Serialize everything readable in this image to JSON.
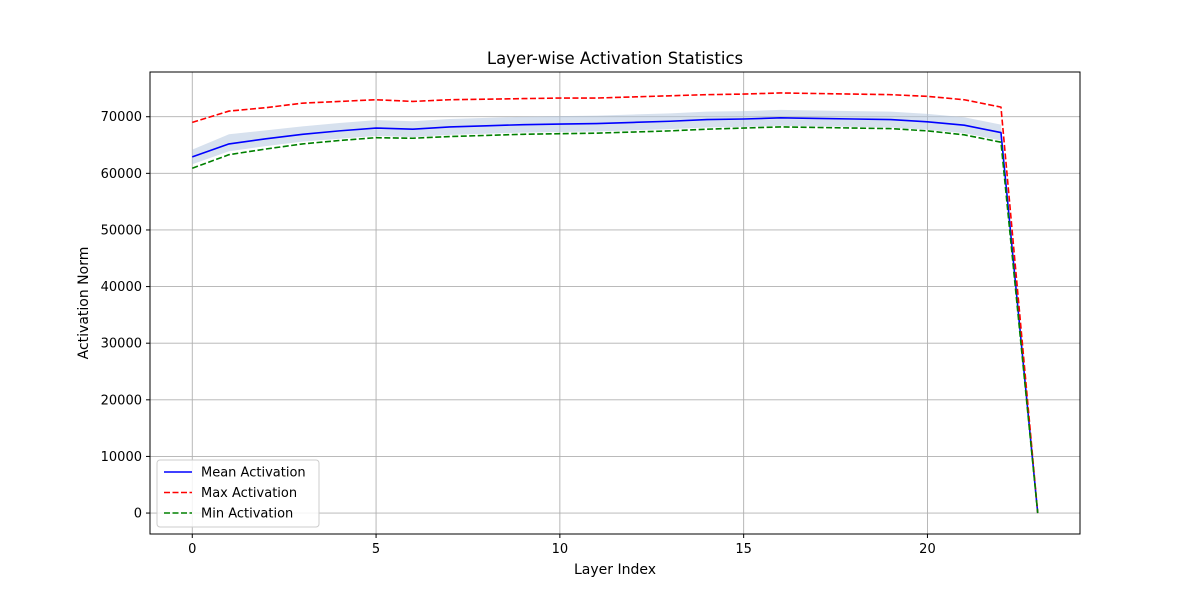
{
  "chart_data": {
    "type": "line",
    "title": "Layer-wise Activation Statistics",
    "xlabel": "Layer Index",
    "ylabel": "Activation Norm",
    "xlim": [
      -1.15,
      24.15
    ],
    "ylim": [
      -3700,
      77900
    ],
    "xticks": [
      0,
      5,
      10,
      15,
      20
    ],
    "yticks": [
      0,
      10000,
      20000,
      30000,
      40000,
      50000,
      60000,
      70000
    ],
    "grid": true,
    "legend_position": "lower-left",
    "x": [
      0,
      1,
      2,
      3,
      4,
      5,
      6,
      7,
      8,
      9,
      10,
      11,
      12,
      13,
      14,
      15,
      16,
      17,
      18,
      19,
      20,
      21,
      22,
      23
    ],
    "series": [
      {
        "name": "Mean Activation",
        "color": "#0000ff",
        "style": "solid",
        "values": [
          62900,
          65200,
          66100,
          66900,
          67500,
          68000,
          67800,
          68200,
          68400,
          68600,
          68700,
          68800,
          69000,
          69200,
          69500,
          69600,
          69800,
          69700,
          69600,
          69500,
          69100,
          68500,
          67200,
          0
        ]
      },
      {
        "name": "Max Activation",
        "color": "#ff0000",
        "style": "dashed",
        "values": [
          69000,
          71000,
          71600,
          72400,
          72700,
          73000,
          72700,
          73000,
          73100,
          73200,
          73300,
          73300,
          73500,
          73700,
          73900,
          74000,
          74200,
          74100,
          74000,
          73900,
          73600,
          73000,
          71700,
          0
        ]
      },
      {
        "name": "Min Activation",
        "color": "#008000",
        "style": "dashed",
        "values": [
          60900,
          63300,
          64300,
          65200,
          65800,
          66300,
          66200,
          66500,
          66700,
          66900,
          67000,
          67100,
          67300,
          67500,
          67800,
          68000,
          68200,
          68100,
          68000,
          67900,
          67500,
          66800,
          65500,
          0
        ]
      }
    ],
    "band": {
      "color": "#b0c4de",
      "lower": [
        61600,
        63900,
        64800,
        65600,
        66100,
        66600,
        66400,
        66800,
        67000,
        67200,
        67300,
        67400,
        67600,
        67800,
        68100,
        68200,
        68400,
        68300,
        68200,
        68100,
        67700,
        67100,
        65800,
        0
      ],
      "upper": [
        64200,
        66900,
        67600,
        68300,
        68900,
        69400,
        69200,
        69600,
        69800,
        70000,
        70100,
        70200,
        70400,
        70600,
        70900,
        71000,
        71200,
        71100,
        71000,
        70900,
        70500,
        69900,
        68600,
        0
      ]
    }
  }
}
